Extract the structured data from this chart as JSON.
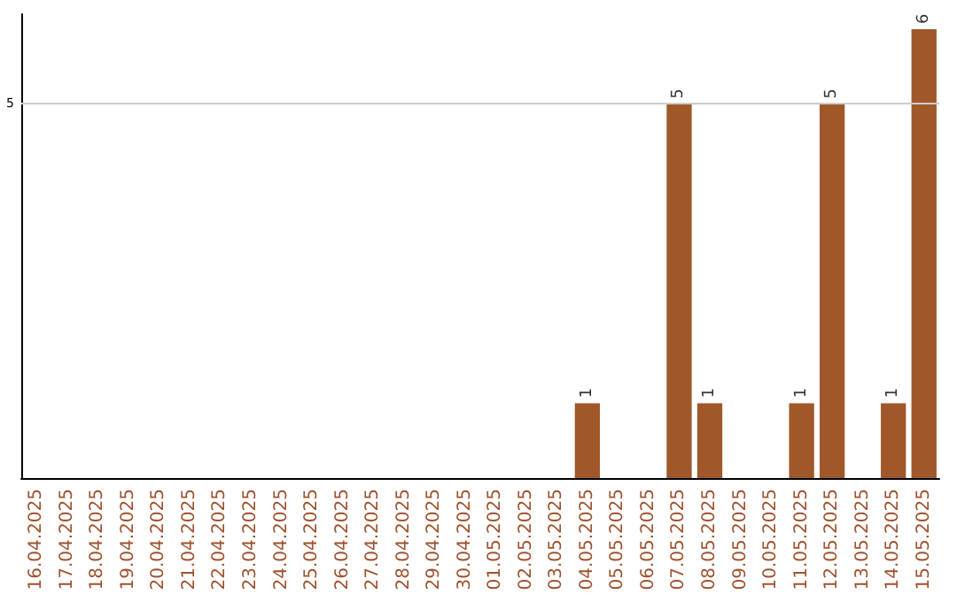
{
  "chart_data": {
    "type": "bar",
    "categories": [
      "16.04.2025",
      "17.04.2025",
      "18.04.2025",
      "19.04.2025",
      "20.04.2025",
      "21.04.2025",
      "22.04.2025",
      "23.04.2025",
      "24.04.2025",
      "25.04.2025",
      "26.04.2025",
      "27.04.2025",
      "28.04.2025",
      "29.04.2025",
      "30.04.2025",
      "01.05.2025",
      "02.05.2025",
      "03.05.2025",
      "04.05.2025",
      "05.05.2025",
      "06.05.2025",
      "07.05.2025",
      "08.05.2025",
      "09.05.2025",
      "10.05.2025",
      "11.05.2025",
      "12.05.2025",
      "13.05.2025",
      "14.05.2025",
      "15.05.2025"
    ],
    "values": [
      null,
      null,
      null,
      null,
      null,
      null,
      null,
      null,
      null,
      null,
      null,
      null,
      null,
      null,
      null,
      null,
      null,
      null,
      1,
      null,
      null,
      5,
      1,
      null,
      null,
      1,
      5,
      null,
      1,
      6
    ],
    "data_labels": true,
    "color": "#a0582a",
    "ylim": [
      0,
      6.2
    ],
    "ref_lines": [
      {
        "axis": "y",
        "value": 5,
        "label": "5",
        "color": "#cccccc"
      }
    ]
  }
}
